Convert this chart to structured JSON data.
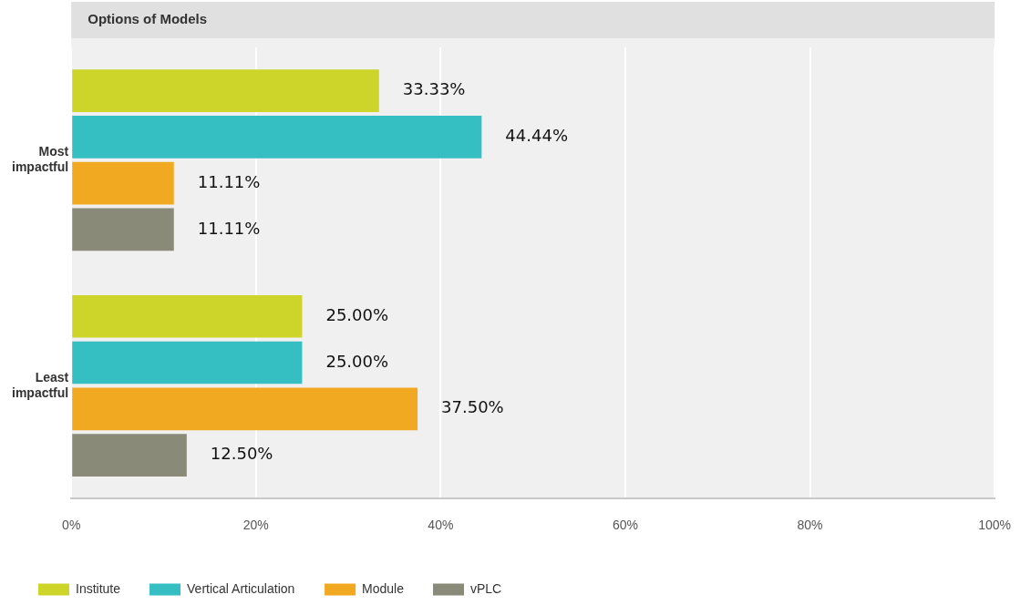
{
  "chart_data": {
    "type": "bar",
    "orientation": "horizontal",
    "title": "Options of Models",
    "categories": [
      "Most impactful",
      "Least impactful"
    ],
    "series": [
      {
        "name": "Institute",
        "color": "#cdd52a",
        "values": [
          33.33,
          25.0
        ],
        "value_labels": [
          "33.33%",
          "25.00%"
        ]
      },
      {
        "name": "Vertical Articulation",
        "color": "#35bfc3",
        "values": [
          44.44,
          25.0
        ],
        "value_labels": [
          "44.44%",
          "25.00%"
        ]
      },
      {
        "name": "Module",
        "color": "#f2a922",
        "values": [
          11.11,
          37.5
        ],
        "value_labels": [
          "11.11%",
          "37.50%"
        ]
      },
      {
        "name": "vPLC",
        "color": "#8a8a78",
        "values": [
          11.11,
          12.5
        ],
        "value_labels": [
          "11.11%",
          "12.50%"
        ]
      }
    ],
    "xlim": [
      0,
      100
    ],
    "xticks": [
      {
        "value": 0,
        "label": "0%"
      },
      {
        "value": 20,
        "label": "20%"
      },
      {
        "value": 40,
        "label": "40%"
      },
      {
        "value": 60,
        "label": "60%"
      },
      {
        "value": 80,
        "label": "80%"
      },
      {
        "value": 100,
        "label": "100%"
      }
    ],
    "grid": "x",
    "legend": "bottom"
  }
}
